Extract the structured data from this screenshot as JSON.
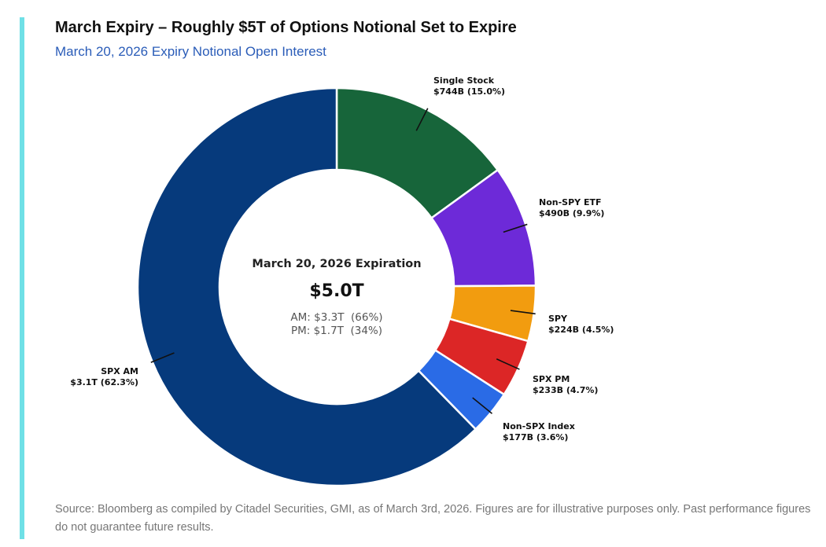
{
  "title": "March Expiry – Roughly $5T of Options Notional Set to Expire",
  "subtitle": "March 20, 2026 Expiry Notional Open Interest",
  "footnote": "Source: Bloomberg as compiled by Citadel Securities, GMI, as of March 3rd, 2026. Figures are for illustrative purposes only. Past performance figures do not guarantee future results.",
  "chart_data": {
    "type": "pie",
    "variant": "donut",
    "center": {
      "heading": "March 20, 2026 Expiration",
      "total": "$5.0T",
      "am": "AM: $3.3T  (66%)",
      "pm": "PM: $1.7T  (34%)"
    },
    "slices": [
      {
        "name": "Single Stock",
        "value_label": "$744B (15.0%)",
        "value_b": 744,
        "percent": 15.0,
        "color": "#17653a"
      },
      {
        "name": "Non-SPY ETF",
        "value_label": "$490B (9.9%)",
        "value_b": 490,
        "percent": 9.9,
        "color": "#6d2ad8"
      },
      {
        "name": "SPY",
        "value_label": "$224B (4.5%)",
        "value_b": 224,
        "percent": 4.5,
        "color": "#f29c0f"
      },
      {
        "name": "SPX PM",
        "value_label": "$233B (4.7%)",
        "value_b": 233,
        "percent": 4.7,
        "color": "#dc2626"
      },
      {
        "name": "Non-SPX Index",
        "value_label": "$177B (3.6%)",
        "value_b": 177,
        "percent": 3.6,
        "color": "#2a6be6"
      },
      {
        "name": "SPX AM",
        "value_label": "$3.1T (62.3%)",
        "value_b": 3100,
        "percent": 62.3,
        "color": "#063a7c"
      }
    ]
  }
}
